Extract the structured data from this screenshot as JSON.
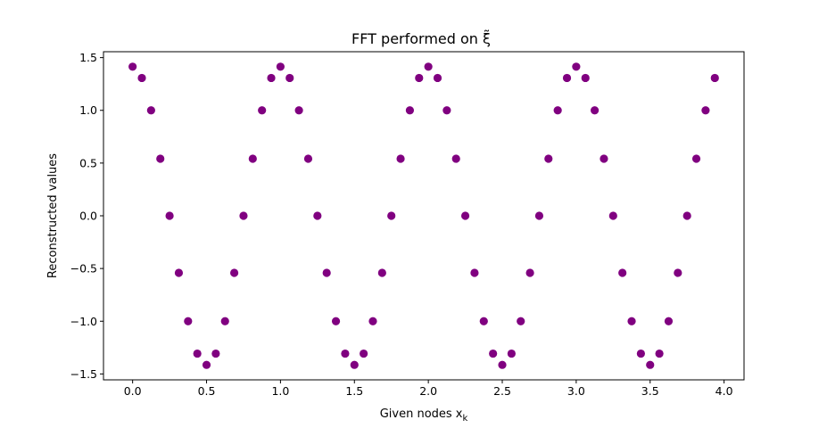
{
  "chart_data": {
    "type": "scatter",
    "title": "FFT performed on ξ̃",
    "xlabel": "Given nodes x",
    "xlabel_subscript": "k",
    "ylabel": "Reconstructed values",
    "xlim": [
      -0.197,
      4.135
    ],
    "ylim": [
      -1.556,
      1.556
    ],
    "xticks": [
      0.0,
      0.5,
      1.0,
      1.5,
      2.0,
      2.5,
      3.0,
      3.5,
      4.0
    ],
    "xtick_labels": [
      "0.0",
      "0.5",
      "1.0",
      "1.5",
      "2.0",
      "2.5",
      "3.0",
      "3.5",
      "4.0"
    ],
    "yticks": [
      -1.5,
      -1.0,
      -0.5,
      0.0,
      0.5,
      1.0,
      1.5
    ],
    "ytick_labels": [
      "−1.5",
      "−1.0",
      "−0.5",
      "0.0",
      "0.5",
      "1.0",
      "1.5"
    ],
    "grid": false,
    "marker_color": "#800080",
    "x": [
      0.0,
      0.0625,
      0.125,
      0.1875,
      0.25,
      0.3125,
      0.375,
      0.4375,
      0.5,
      0.5625,
      0.625,
      0.6875,
      0.75,
      0.8125,
      0.875,
      0.9375,
      1.0,
      1.0625,
      1.125,
      1.1875,
      1.25,
      1.3125,
      1.375,
      1.4375,
      1.5,
      1.5625,
      1.625,
      1.6875,
      1.75,
      1.8125,
      1.875,
      1.9375,
      2.0,
      2.0625,
      2.125,
      2.1875,
      2.25,
      2.3125,
      2.375,
      2.4375,
      2.5,
      2.5625,
      2.625,
      2.6875,
      2.75,
      2.8125,
      2.875,
      2.9375,
      3.0,
      3.0625,
      3.125,
      3.1875,
      3.25,
      3.3125,
      3.375,
      3.4375,
      3.5,
      3.5625,
      3.625,
      3.6875,
      3.75,
      3.8125,
      3.875,
      3.9375
    ],
    "y": [
      1.414,
      1.307,
      1.0,
      0.541,
      0.0,
      -0.541,
      -1.0,
      -1.307,
      -1.414,
      -1.307,
      -1.0,
      -0.541,
      0.0,
      0.541,
      1.0,
      1.307,
      1.414,
      1.307,
      1.0,
      0.541,
      0.0,
      -0.541,
      -1.0,
      -1.307,
      -1.414,
      -1.307,
      -1.0,
      -0.541,
      0.0,
      0.541,
      1.0,
      1.307,
      1.414,
      1.307,
      1.0,
      0.541,
      0.0,
      -0.541,
      -1.0,
      -1.307,
      -1.414,
      -1.307,
      -1.0,
      -0.541,
      0.0,
      0.541,
      1.0,
      1.307,
      1.414,
      1.307,
      1.0,
      0.541,
      0.0,
      -0.541,
      -1.0,
      -1.307,
      -1.414,
      -1.307,
      -1.0,
      -0.541,
      0.0,
      0.541,
      1.0,
      1.307
    ]
  }
}
